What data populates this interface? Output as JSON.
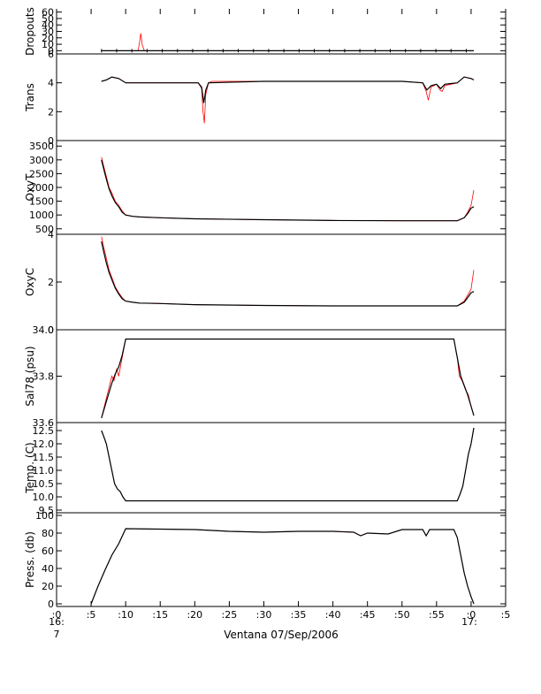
{
  "colors": {
    "raw": "#ff0000",
    "smoothed": "#000000",
    "axis": "#000000",
    "background": "#ffffff"
  },
  "x_axis": {
    "tick_labels": [
      ":0",
      ":5",
      ":10",
      ":15",
      ":20",
      ":25",
      ":30",
      ":35",
      ":40",
      ":45",
      ":50",
      ":55",
      ":0",
      ":5"
    ],
    "tick_minutes": [
      0,
      5,
      10,
      15,
      20,
      25,
      30,
      35,
      40,
      45,
      50,
      55,
      60,
      65
    ],
    "hour_start_label": "16:",
    "hour_start_sub": "7",
    "hour_end_label": "17:",
    "title": "Ventana 07/Sep/2006"
  },
  "chart_data": [
    {
      "type": "line",
      "ylabel": "Dropouts",
      "ylim": [
        -5,
        65
      ],
      "yticks": [
        0,
        10,
        20,
        30,
        40,
        50,
        60
      ],
      "ytick_labels": [
        "0",
        "10",
        "20",
        "30",
        "40",
        "50",
        "60"
      ],
      "series": [
        {
          "style": "raw",
          "x": [
            6.5,
            11.8,
            12.0,
            12.2,
            12.4,
            12.7,
            54,
            60.4
          ],
          "y": [
            0,
            0,
            12,
            27,
            9,
            0,
            0,
            0
          ]
        },
        {
          "style": "smoothed",
          "x": [
            6.5,
            60.4
          ],
          "y": [
            0,
            0
          ]
        }
      ]
    },
    {
      "type": "line",
      "ylabel": "Trans",
      "ylim": [
        0,
        6
      ],
      "yticks": [
        0,
        2,
        4,
        6
      ],
      "ytick_labels": [
        "0",
        "2",
        "4",
        "6"
      ],
      "series": [
        {
          "style": "raw",
          "x": [
            6.5,
            7.2,
            8.0,
            9.0,
            10,
            20.5,
            21.0,
            21.2,
            21.4,
            21.6,
            22.0,
            22.5,
            30,
            40,
            50,
            53.0,
            53.5,
            53.8,
            54.2,
            55.0,
            55.5,
            55.8,
            56.2,
            58.0,
            59.0,
            60.0,
            60.4
          ],
          "y": [
            4.1,
            4.2,
            4.4,
            4.3,
            4.0,
            4.0,
            3.6,
            2.0,
            1.2,
            3.2,
            4.0,
            4.1,
            4.1,
            4.1,
            4.1,
            4.0,
            3.4,
            2.8,
            3.7,
            3.9,
            3.5,
            3.4,
            3.8,
            4.0,
            4.4,
            4.3,
            4.2
          ]
        },
        {
          "style": "smoothed",
          "x": [
            6.5,
            7.2,
            8.0,
            9.0,
            10,
            20.5,
            21.0,
            21.3,
            21.6,
            22.0,
            30,
            40,
            50,
            53.0,
            53.6,
            54.2,
            55.0,
            55.6,
            56.2,
            58.0,
            59.0,
            60.0,
            60.4
          ],
          "y": [
            4.1,
            4.2,
            4.4,
            4.3,
            4.0,
            4.0,
            3.7,
            2.6,
            3.5,
            4.0,
            4.1,
            4.1,
            4.1,
            4.0,
            3.5,
            3.8,
            3.9,
            3.6,
            3.9,
            4.0,
            4.4,
            4.3,
            4.2
          ]
        }
      ]
    },
    {
      "type": "line",
      "ylabel": "OxyT",
      "ylim": [
        300,
        3700
      ],
      "yticks": [
        500,
        1000,
        1500,
        2000,
        2500,
        3000,
        3500
      ],
      "ytick_labels": [
        "500",
        "1000",
        "1500",
        "2000",
        "2500",
        "3000",
        "3500"
      ],
      "series": [
        {
          "style": "raw",
          "x": [
            6.5,
            6.8,
            7.2,
            7.6,
            8.0,
            8.5,
            9.0,
            9.5,
            10,
            11,
            12,
            15,
            20,
            30,
            40,
            50,
            58,
            59,
            59.5,
            60,
            60.4
          ],
          "y": [
            3100,
            2800,
            2400,
            2000,
            1800,
            1500,
            1350,
            1150,
            1000,
            950,
            930,
            900,
            860,
            830,
            800,
            790,
            790,
            900,
            1100,
            1350,
            1900
          ]
        },
        {
          "style": "smoothed",
          "x": [
            6.5,
            6.8,
            7.2,
            7.6,
            8.0,
            8.5,
            9.0,
            9.5,
            10,
            11,
            12,
            15,
            20,
            30,
            40,
            50,
            58,
            59,
            59.5,
            60,
            60.4
          ],
          "y": [
            3000,
            2700,
            2300,
            1950,
            1700,
            1450,
            1300,
            1100,
            1000,
            950,
            930,
            900,
            860,
            830,
            800,
            790,
            790,
            900,
            1050,
            1250,
            1300
          ]
        }
      ]
    },
    {
      "type": "line",
      "ylabel": "OxyC",
      "ylim": [
        0,
        4
      ],
      "yticks": [
        0,
        2,
        4
      ],
      "ytick_labels": [
        "0",
        "2",
        "4"
      ],
      "series": [
        {
          "style": "raw",
          "x": [
            6.5,
            6.8,
            7.2,
            7.6,
            8.0,
            8.5,
            9.0,
            9.5,
            10,
            11,
            12,
            15,
            20,
            30,
            40,
            50,
            58,
            59,
            59.5,
            60,
            60.4
          ],
          "y": [
            3.9,
            3.5,
            3.0,
            2.5,
            2.2,
            1.8,
            1.55,
            1.35,
            1.2,
            1.15,
            1.12,
            1.1,
            1.05,
            1.02,
            1.0,
            1.0,
            1.0,
            1.2,
            1.45,
            1.7,
            2.5
          ]
        },
        {
          "style": "smoothed",
          "x": [
            6.5,
            6.8,
            7.2,
            7.6,
            8.0,
            8.5,
            9.0,
            9.5,
            10,
            11,
            12,
            15,
            20,
            30,
            40,
            50,
            58,
            59,
            59.5,
            60,
            60.4
          ],
          "y": [
            3.7,
            3.3,
            2.8,
            2.4,
            2.1,
            1.75,
            1.5,
            1.3,
            1.2,
            1.15,
            1.12,
            1.1,
            1.05,
            1.02,
            1.0,
            1.0,
            1.0,
            1.15,
            1.35,
            1.55,
            1.6
          ]
        }
      ]
    },
    {
      "type": "line",
      "ylabel": "Sal78 (psu)",
      "ylim": [
        33.6,
        34.0
      ],
      "yticks": [
        33.6,
        33.8,
        34.0
      ],
      "ytick_labels": [
        "33.6",
        "33.8",
        "34.0"
      ],
      "series": [
        {
          "style": "raw",
          "x": [
            6.5,
            7.0,
            7.5,
            8.0,
            8.3,
            8.7,
            9.0,
            9.5,
            10,
            11,
            20,
            30,
            40,
            50,
            57.5,
            58,
            58.3,
            58.7,
            59.2,
            59.6,
            60.0,
            60.4
          ],
          "y": [
            33.62,
            33.68,
            33.74,
            33.8,
            33.78,
            33.83,
            33.8,
            33.88,
            33.96,
            33.96,
            33.96,
            33.96,
            33.96,
            33.96,
            33.96,
            33.88,
            33.8,
            33.78,
            33.74,
            33.72,
            33.67,
            33.63
          ]
        },
        {
          "style": "smoothed",
          "x": [
            6.5,
            7.0,
            7.5,
            8.0,
            8.5,
            9.0,
            9.5,
            10,
            11,
            20,
            30,
            40,
            50,
            57.5,
            58,
            58.5,
            59.0,
            59.5,
            60.0,
            60.4
          ],
          "y": [
            33.62,
            33.67,
            33.72,
            33.77,
            33.81,
            33.84,
            33.89,
            33.96,
            33.96,
            33.96,
            33.96,
            33.96,
            33.96,
            33.96,
            33.88,
            33.8,
            33.76,
            33.72,
            33.67,
            33.63
          ]
        }
      ]
    },
    {
      "type": "line",
      "ylabel": "Temp. (C)",
      "ylim": [
        9.4,
        12.8
      ],
      "yticks": [
        9.5,
        10.0,
        10.5,
        11.0,
        11.5,
        12.0,
        12.5
      ],
      "ytick_labels": [
        "9.5",
        "10.0",
        "10.5",
        "11.0",
        "11.5",
        "12.0",
        "12.5"
      ],
      "series": [
        {
          "style": "raw",
          "x": [
            6.5,
            6.8,
            7.2,
            7.6,
            8.0,
            8.4,
            8.8,
            9.2,
            9.6,
            10,
            11,
            20,
            30,
            40,
            50,
            58,
            58.4,
            58.8,
            59.2,
            59.6,
            60.0,
            60.4
          ],
          "y": [
            12.5,
            12.3,
            12.0,
            11.5,
            11.0,
            10.5,
            10.3,
            10.2,
            10.0,
            9.85,
            9.85,
            9.85,
            9.85,
            9.85,
            9.85,
            9.85,
            10.1,
            10.4,
            11.0,
            11.6,
            12.0,
            12.6
          ]
        },
        {
          "style": "smoothed",
          "x": [
            6.5,
            6.8,
            7.2,
            7.6,
            8.0,
            8.4,
            8.8,
            9.2,
            9.6,
            10,
            11,
            20,
            30,
            40,
            50,
            58,
            58.4,
            58.8,
            59.2,
            59.6,
            60.0,
            60.4
          ],
          "y": [
            12.5,
            12.3,
            12.0,
            11.5,
            11.0,
            10.5,
            10.3,
            10.2,
            10.0,
            9.85,
            9.85,
            9.85,
            9.85,
            9.85,
            9.85,
            9.85,
            10.1,
            10.4,
            11.0,
            11.6,
            12.0,
            12.6
          ]
        }
      ]
    },
    {
      "type": "line",
      "ylabel": "Press. (db)",
      "ylim": [
        -3,
        103
      ],
      "yticks": [
        0,
        20,
        40,
        60,
        80,
        100
      ],
      "ytick_labels": [
        "0",
        "20",
        "40",
        "60",
        "80",
        "100"
      ],
      "series": [
        {
          "style": "raw",
          "x": [
            5.0,
            6.0,
            7.0,
            8.0,
            9.0,
            10,
            20,
            25,
            30,
            35,
            40,
            43,
            44,
            45,
            48,
            50,
            52,
            53,
            53.5,
            54,
            57.5,
            58,
            58.5,
            59,
            59.5,
            60,
            60.4
          ],
          "y": [
            0,
            20,
            38,
            55,
            68,
            85,
            84,
            82,
            81,
            82,
            82,
            81,
            77,
            80,
            79,
            84,
            84,
            84,
            77,
            84,
            84,
            75,
            55,
            35,
            20,
            8,
            0
          ]
        },
        {
          "style": "smoothed",
          "x": [
            5.0,
            6.0,
            7.0,
            8.0,
            9.0,
            10,
            20,
            25,
            30,
            35,
            40,
            43,
            44,
            45,
            48,
            50,
            52,
            53,
            53.5,
            54,
            57.5,
            58,
            58.5,
            59,
            59.5,
            60,
            60.4
          ],
          "y": [
            0,
            20,
            38,
            55,
            68,
            85,
            84,
            82,
            81,
            82,
            82,
            81,
            77,
            80,
            79,
            84,
            84,
            84,
            77,
            84,
            84,
            75,
            55,
            35,
            20,
            8,
            0
          ]
        }
      ]
    }
  ]
}
